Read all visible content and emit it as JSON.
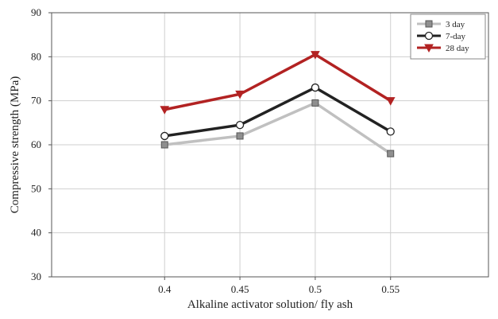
{
  "chart_data": {
    "type": "line",
    "title": "",
    "xlabel": "Alkaline activator solution/ fly ash",
    "ylabel": "Compressive strength (MPa)",
    "categories": [
      "0.4",
      "0.45",
      "0.5",
      "0.55"
    ],
    "x": [
      0.4,
      0.45,
      0.5,
      0.55
    ],
    "xlim": [
      0.325,
      0.615
    ],
    "ylim": [
      30,
      90
    ],
    "yticks": [
      30,
      40,
      50,
      60,
      70,
      80,
      90
    ],
    "grid": true,
    "legend_position": "top-right",
    "series": [
      {
        "name": "3 day",
        "values": [
          60,
          62,
          69.5,
          58
        ],
        "color": "#c0c0c0",
        "marker": "square"
      },
      {
        "name": "7-day",
        "values": [
          62,
          64.5,
          73,
          63
        ],
        "color": "#222222",
        "marker": "circle"
      },
      {
        "name": "28 day",
        "values": [
          68,
          71.5,
          80.5,
          70
        ],
        "color": "#b22222",
        "marker": "triangle-down"
      }
    ]
  }
}
